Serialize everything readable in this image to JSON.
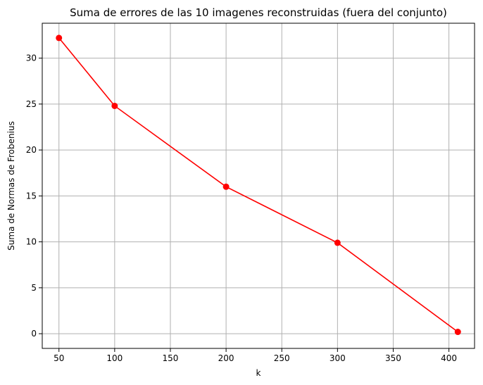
{
  "chart_data": {
    "type": "line",
    "title": "Suma de errores de las 10 imagenes reconstruidas (fuera del conjunto)",
    "xlabel": "k",
    "ylabel": "Suma de Normas de Frobenius",
    "xlim": [
      35,
      423
    ],
    "ylim": [
      -1.6,
      33.8
    ],
    "xticks": [
      50,
      100,
      150,
      200,
      250,
      300,
      350,
      400
    ],
    "yticks": [
      0,
      5,
      10,
      15,
      20,
      25,
      30
    ],
    "grid": true,
    "series": [
      {
        "x": [
          50,
          100,
          200,
          300,
          408
        ],
        "values": [
          32.2,
          24.8,
          16.0,
          9.9,
          0.2
        ],
        "color": "#ff0000",
        "marker": "circle"
      }
    ]
  }
}
